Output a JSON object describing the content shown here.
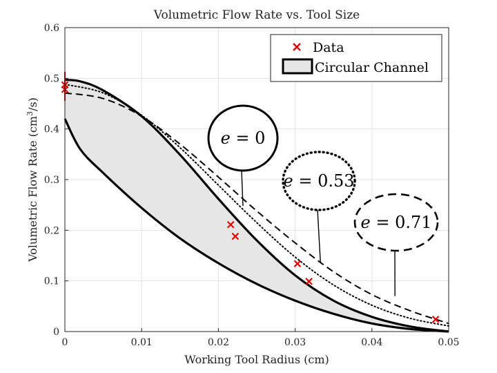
{
  "chart_data": {
    "type": "line",
    "title": "Volumetric Flow Rate vs. Tool Size",
    "xlabel": "Working Tool Radius (cm)",
    "ylabel": "Volumetric Flow Rate (cm",
    "ylabel_sup": "3",
    "ylabel_tail": "/s)",
    "xlim": [
      0,
      0.05
    ],
    "ylim": [
      0,
      0.6
    ],
    "xticks": [
      "0",
      "0.01",
      "0.02",
      "0.03",
      "0.04",
      "0.05"
    ],
    "yticks": [
      "0",
      "0.1",
      "0.2",
      "0.3",
      "0.4",
      "0.5",
      "0.6"
    ],
    "grid": true,
    "legend": {
      "placement": "top-right",
      "entries": [
        "Data",
        "Circular Channel"
      ]
    },
    "series": [
      {
        "name": "Data",
        "style": "red-x",
        "x": [
          0,
          0,
          0.0216,
          0.0222,
          0.0303,
          0.0318,
          0.0483
        ],
        "y": [
          0.487,
          0.478,
          0.211,
          0.188,
          0.134,
          0.099,
          0.024
        ]
      },
      {
        "name": "Circular Channel",
        "style": "band",
        "x": [
          0,
          0.002,
          0.005,
          0.01,
          0.015,
          0.02,
          0.025,
          0.03,
          0.035,
          0.04,
          0.045,
          0.05
        ],
        "lower": [
          0.42,
          0.36,
          0.313,
          0.244,
          0.184,
          0.135,
          0.094,
          0.061,
          0.035,
          0.016,
          0.005,
          0
        ],
        "upper": [
          0.497,
          0.494,
          0.476,
          0.425,
          0.349,
          0.262,
          0.18,
          0.111,
          0.061,
          0.029,
          0.01,
          0
        ]
      },
      {
        "curve": "e=0.53",
        "style": "dotted",
        "x": [
          0,
          0.005,
          0.01,
          0.015,
          0.02,
          0.025,
          0.03,
          0.035,
          0.04,
          0.045,
          0.05
        ],
        "y": [
          0.488,
          0.471,
          0.427,
          0.363,
          0.289,
          0.215,
          0.147,
          0.092,
          0.052,
          0.026,
          0.011
        ]
      },
      {
        "curve": "e=0.71",
        "style": "dashed",
        "x": [
          0,
          0.005,
          0.01,
          0.015,
          0.02,
          0.025,
          0.03,
          0.035,
          0.04,
          0.045,
          0.05
        ],
        "y": [
          0.471,
          0.46,
          0.425,
          0.37,
          0.305,
          0.238,
          0.175,
          0.118,
          0.073,
          0.041,
          0.016
        ]
      }
    ],
    "annotations": [
      {
        "var": "e",
        "eq": " = ",
        "val": "0",
        "target": [
          0.0232,
          0.248
        ],
        "border": "solid"
      },
      {
        "var": "e",
        "eq": " = ",
        "val": "0.53",
        "target": [
          0.0333,
          0.135
        ],
        "border": "dotted"
      },
      {
        "var": "e",
        "eq": " = ",
        "val": "0.71",
        "target": [
          0.043,
          0.07
        ],
        "border": "dashed"
      }
    ]
  }
}
